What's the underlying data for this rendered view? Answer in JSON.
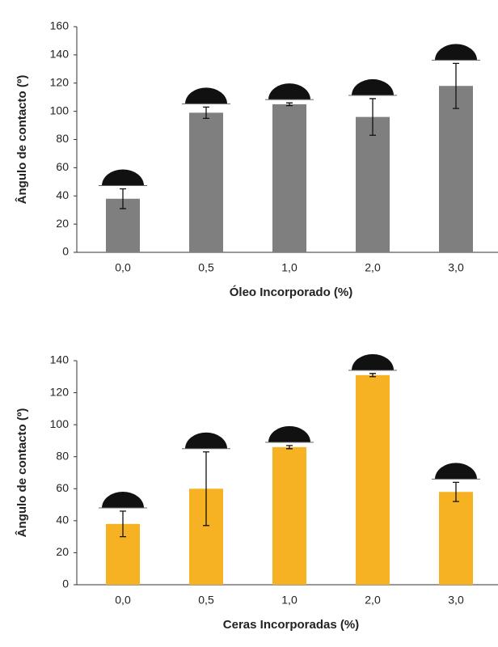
{
  "chart_data": [
    {
      "type": "bar",
      "xlabel": "Óleo Incorporado (%)",
      "ylabel": "Ângulo de contacto (º)",
      "categories": [
        "0,0",
        "0,5",
        "1,0",
        "2,0",
        "3,0"
      ],
      "values": [
        38,
        99,
        105,
        96,
        118
      ],
      "errors": [
        7,
        4,
        1,
        13,
        16
      ],
      "color": "#7f7f7f",
      "ylim": [
        0,
        160
      ],
      "yticks": [
        0,
        20,
        40,
        60,
        80,
        100,
        120,
        140,
        160
      ]
    },
    {
      "type": "bar",
      "xlabel": "Ceras Incorporadas (%)",
      "ylabel": "Ângulo de contacto (º)",
      "categories": [
        "0,0",
        "0,5",
        "1,0",
        "2,0",
        "3,0"
      ],
      "values": [
        38,
        60,
        86,
        131,
        58
      ],
      "errors": [
        8,
        23,
        1,
        1,
        6
      ],
      "color": "#f7b224",
      "ylim": [
        0,
        140
      ],
      "yticks": [
        0,
        20,
        40,
        60,
        80,
        100,
        120,
        140
      ]
    }
  ]
}
